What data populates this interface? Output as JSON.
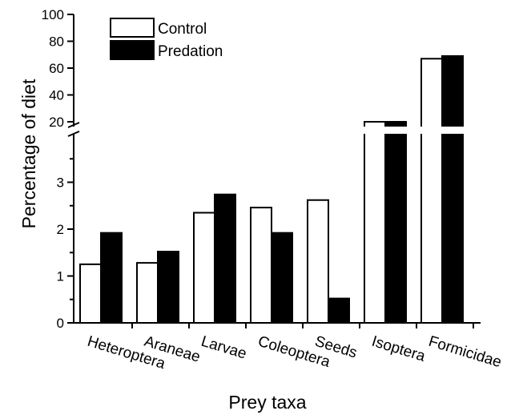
{
  "chart_data": {
    "type": "bar",
    "xlabel": "Prey taxa",
    "ylabel": "Percentage of diet",
    "y_axis_break": true,
    "lower_ylim": [
      0,
      4
    ],
    "lower_ticks": [
      "0",
      "1",
      "2",
      "3"
    ],
    "upper_ylim": [
      20,
      100
    ],
    "upper_ticks": [
      "20",
      "40",
      "60",
      "80",
      "100"
    ],
    "categories": [
      "Heteroptera",
      "Araneae",
      "Larvae",
      "Coleoptera",
      "Seeds",
      "Isoptera",
      "Formicidae"
    ],
    "series": [
      {
        "name": "Control",
        "fill": "#ffffff",
        "values": [
          1.25,
          1.28,
          2.35,
          2.46,
          2.62,
          20,
          67
        ]
      },
      {
        "name": "Predation",
        "fill": "#000000",
        "values": [
          1.92,
          1.52,
          2.74,
          1.92,
          0.52,
          20,
          69
        ]
      }
    ],
    "legend_position": "top-left"
  }
}
